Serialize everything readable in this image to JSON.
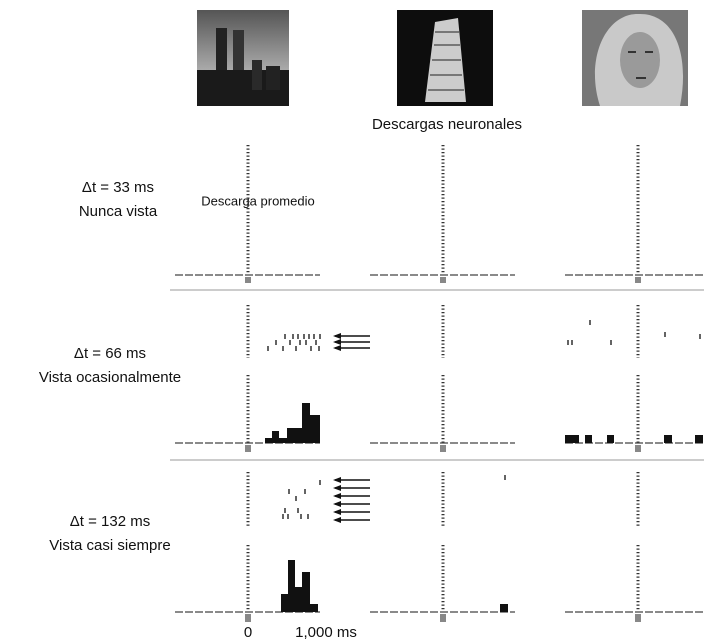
{
  "header": {
    "title": "Descargas neuronales"
  },
  "average_label": "Descarga promedio",
  "rows": [
    {
      "delta": "Δt = 33 ms",
      "label": "Nunca vista"
    },
    {
      "delta": "Δt = 66 ms",
      "label": "Vista ocasionalmente"
    },
    {
      "delta": "Δt = 132 ms",
      "label": "Vista casi siempre"
    }
  ],
  "x_axis": {
    "start": "0",
    "end": "1,000 ms"
  }
}
